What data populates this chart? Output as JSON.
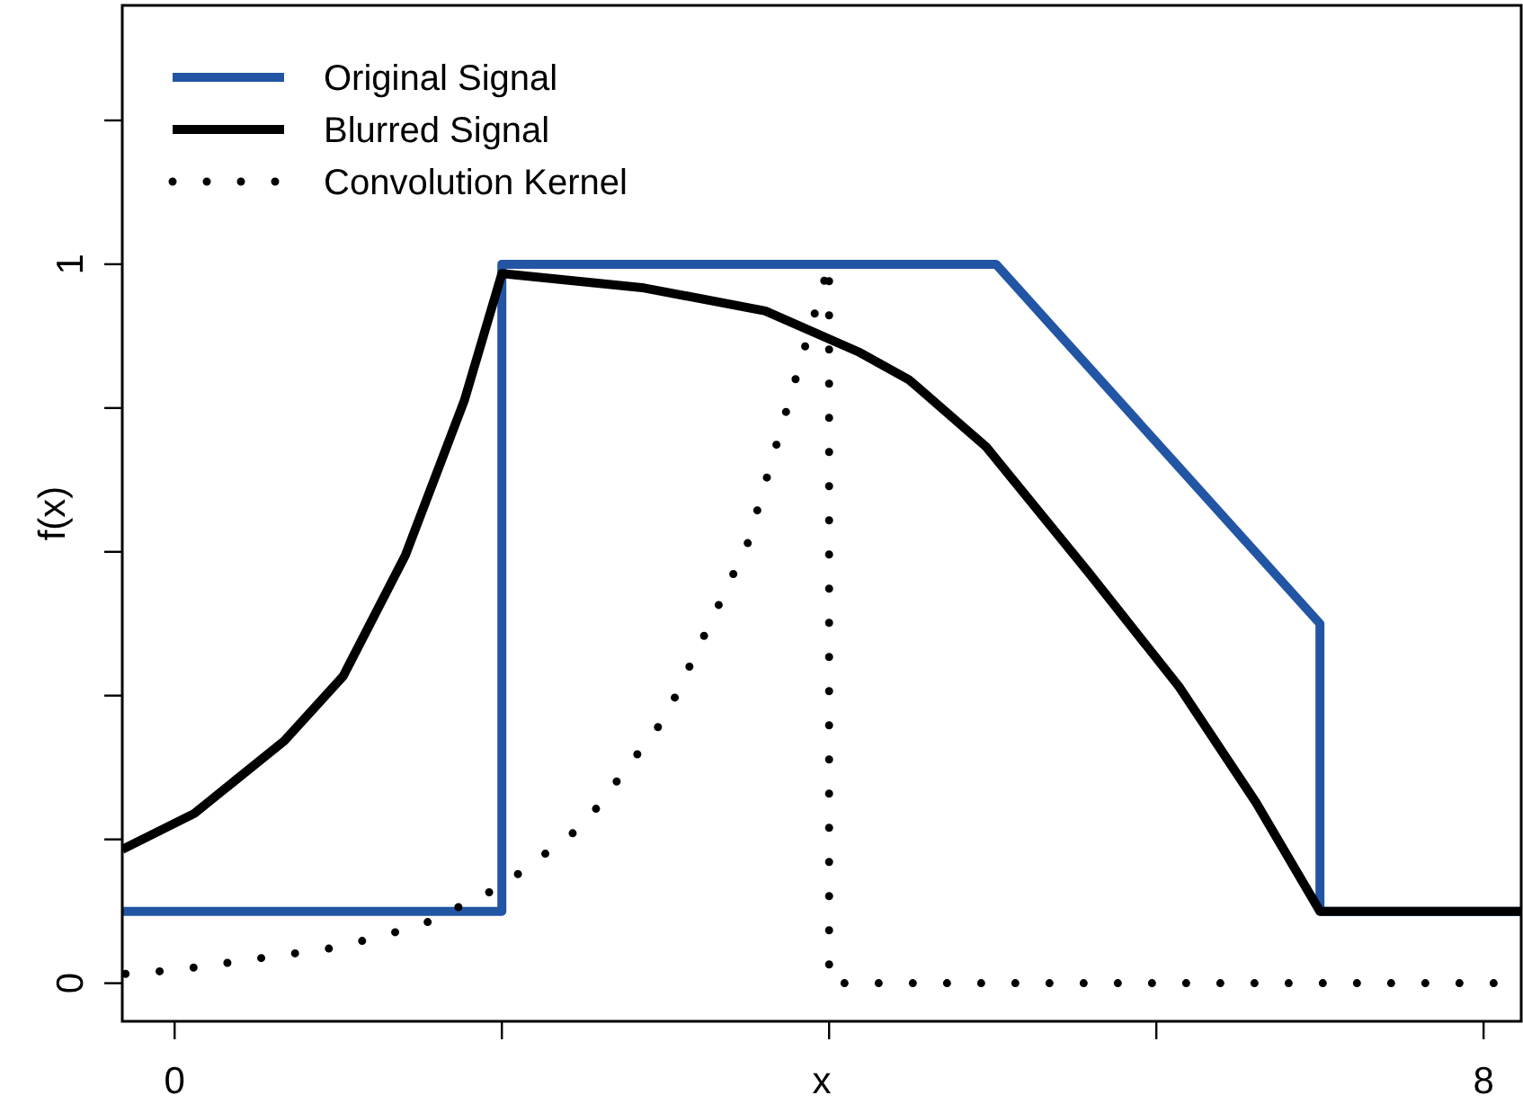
{
  "chart_data": {
    "type": "line",
    "xlabel": "x",
    "ylabel": "f(x)",
    "xlim": [
      -0.32,
      8.23
    ],
    "ylim": [
      -0.053,
      1.36
    ],
    "xticks": [
      0,
      {
        "value": 2,
        "label": null
      },
      {
        "value": 4,
        "label": null
      },
      {
        "value": 6,
        "label": null
      },
      8
    ],
    "yticks": [
      0,
      {
        "value": 0.2,
        "label": null
      },
      {
        "value": 0.4,
        "label": null
      },
      {
        "value": 0.6,
        "label": null
      },
      {
        "value": 0.8,
        "label": null
      },
      1,
      {
        "value": 1.2,
        "label": null
      }
    ],
    "legend": "top left",
    "grid": false,
    "series": [
      {
        "name": "Original Signal",
        "color": "#2255a4",
        "line_style": "solid",
        "x": [
          -0.32,
          2,
          2,
          5.02,
          7,
          7,
          8.23
        ],
        "values": [
          0.1,
          0.1,
          1,
          1,
          0.5,
          0.1,
          0.1
        ]
      },
      {
        "name": "Blurred Signal",
        "color": "#000000",
        "line_style": "solid",
        "x": [
          -0.32,
          0.12,
          0.67,
          1.03,
          1.41,
          1.77,
          2,
          2.87,
          3.61,
          4.19,
          4.49,
          4.96,
          5.59,
          6.14,
          6.61,
          7,
          8.23
        ],
        "values": [
          0.186,
          0.236,
          0.337,
          0.427,
          0.595,
          0.81,
          0.987,
          0.967,
          0.935,
          0.877,
          0.839,
          0.746,
          0.57,
          0.412,
          0.251,
          0.1,
          0.1
        ]
      },
      {
        "name": "Convolution Kernel",
        "color": "#000000",
        "line_style": "dotted",
        "x": [
          -0.3,
          0,
          1,
          1.5,
          2,
          2.5,
          3,
          3.5,
          4,
          4,
          8.23
        ],
        "values": [
          0.013,
          0.018,
          0.05,
          0.08,
          0.135,
          0.22,
          0.37,
          0.61,
          1,
          0,
          0
        ]
      }
    ]
  }
}
